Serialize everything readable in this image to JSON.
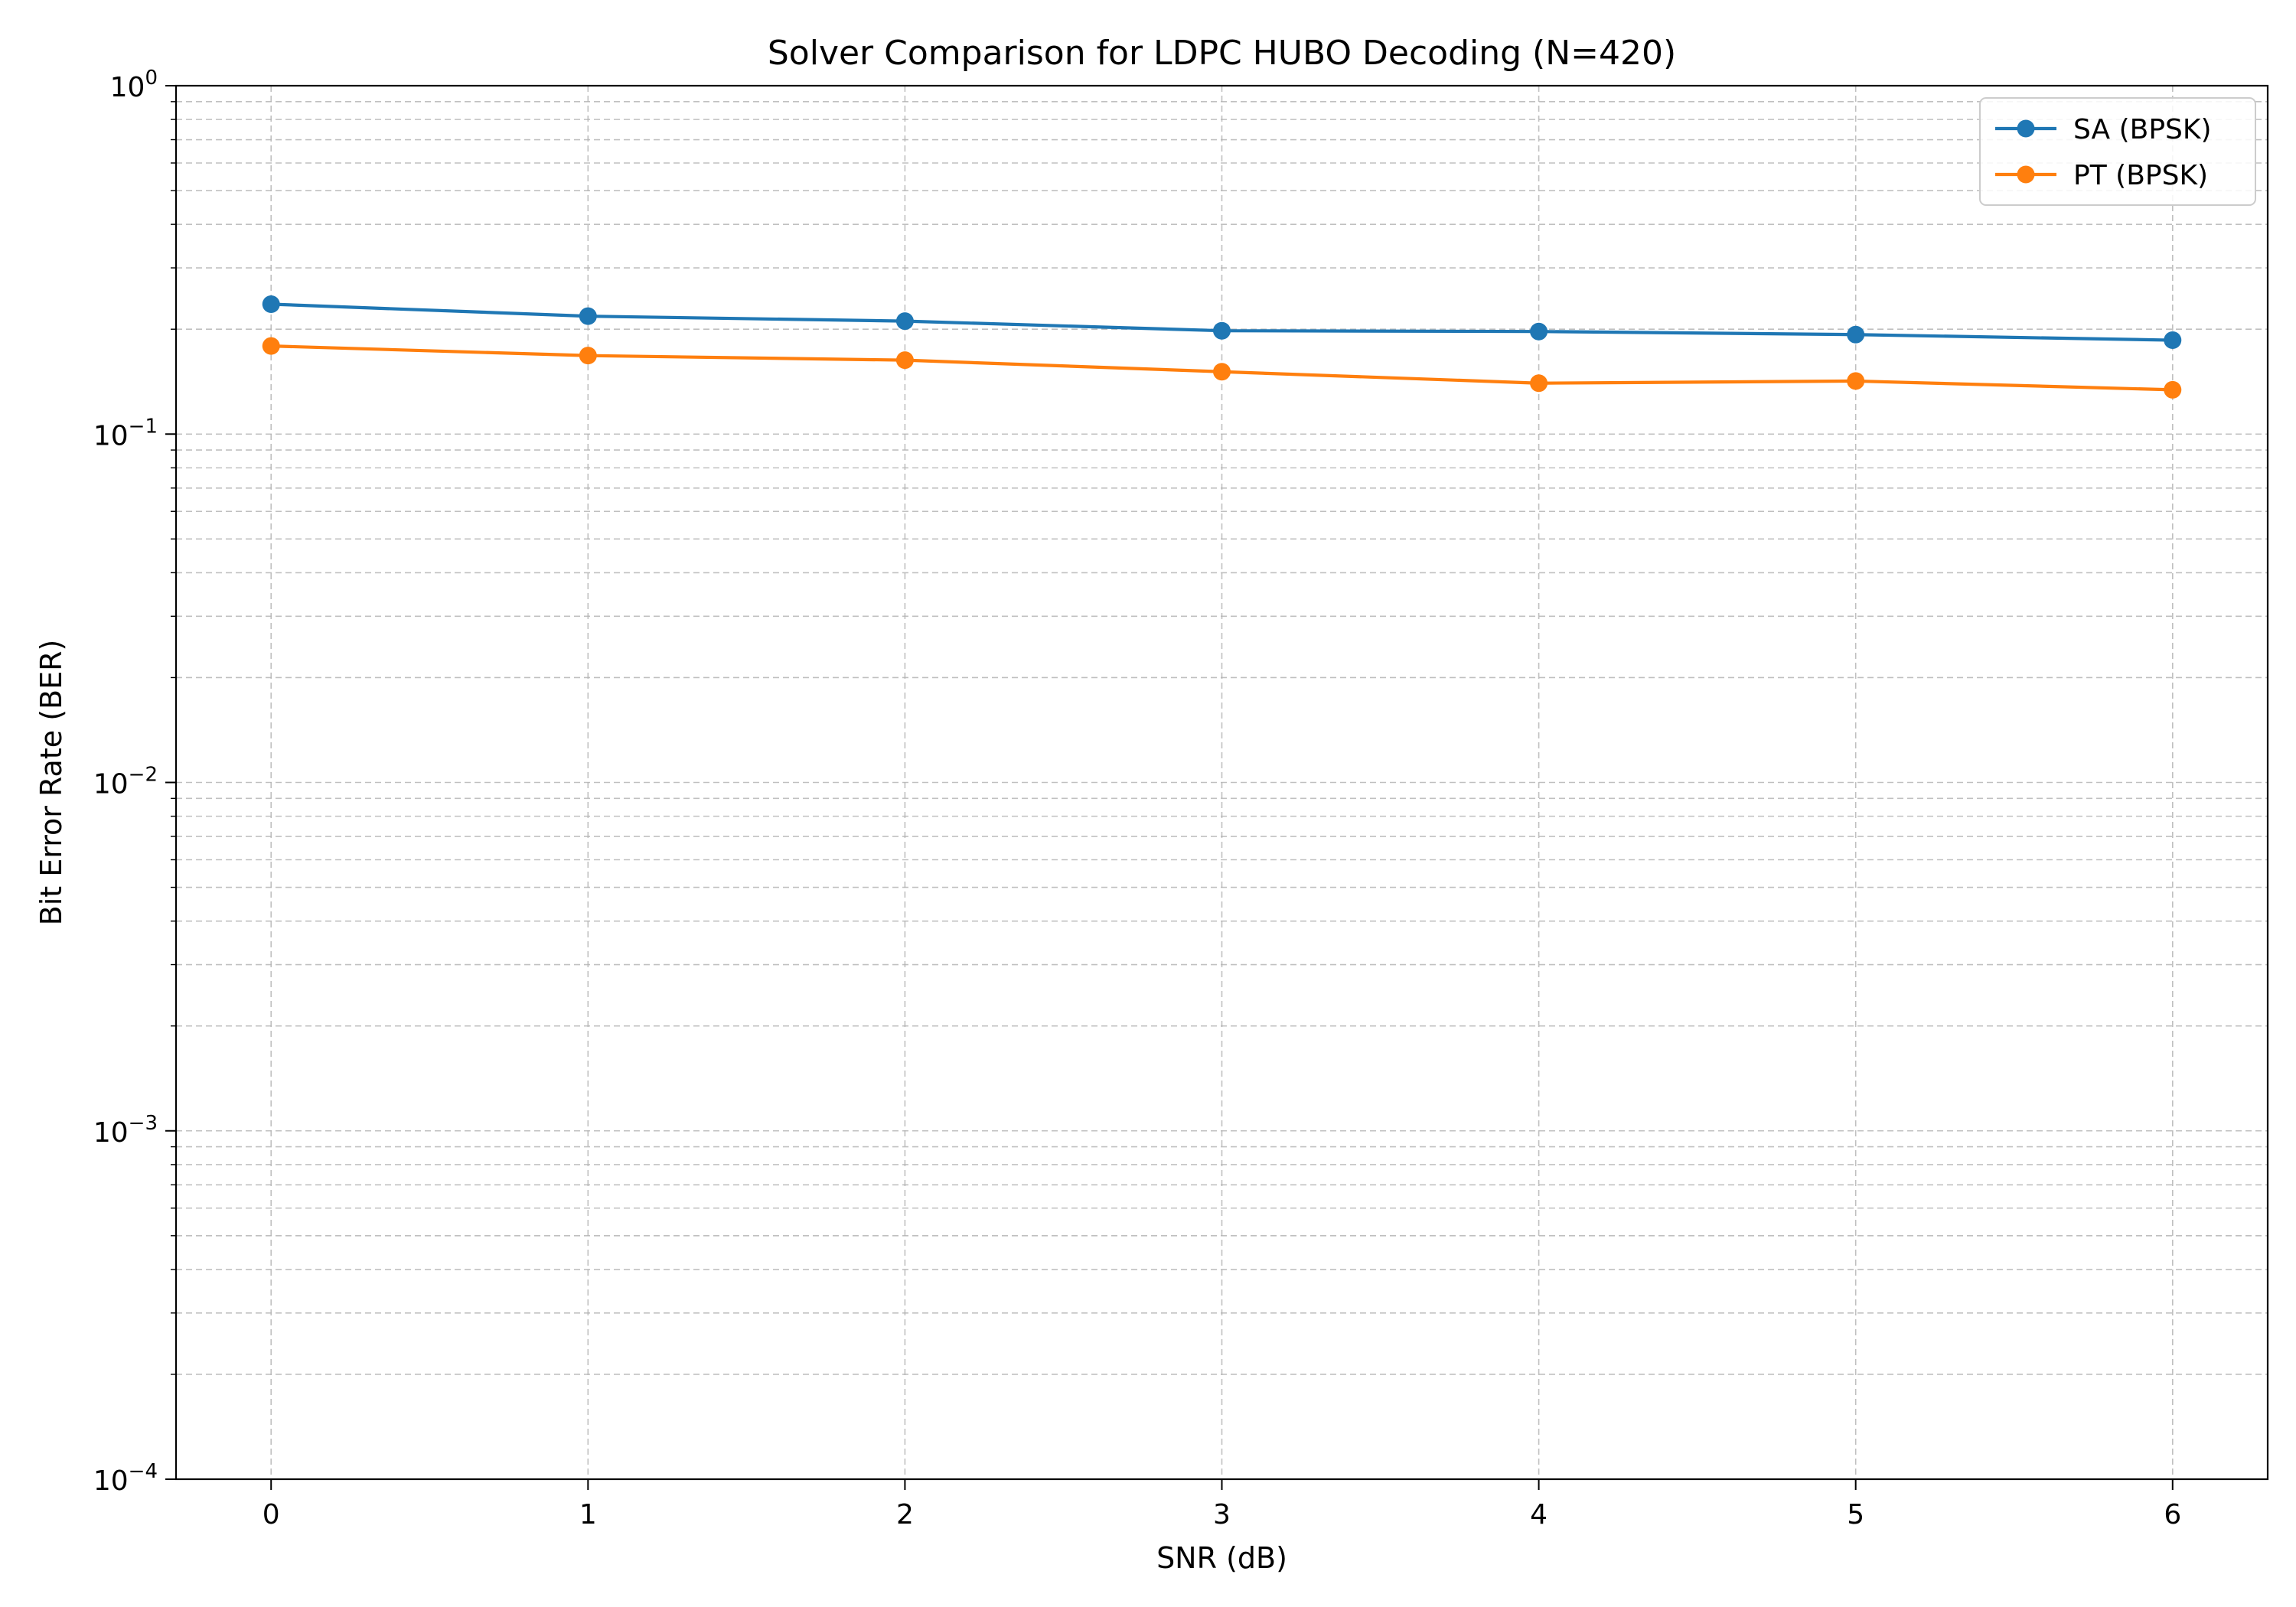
{
  "chart_data": {
    "type": "line",
    "title": "Solver Comparison for LDPC HUBO Decoding (N=420)",
    "xlabel": "SNR (dB)",
    "ylabel": "Bit Error Rate (BER)",
    "x": [
      0,
      1,
      2,
      3,
      4,
      5,
      6
    ],
    "xticks": [
      "0",
      "1",
      "2",
      "3",
      "4",
      "5",
      "6"
    ],
    "xlim": [
      -0.3,
      6.3
    ],
    "ylim": [
      0.0001,
      1
    ],
    "yscale": "log",
    "yticks": [
      {
        "value": 1,
        "base": "10",
        "exp": "0"
      },
      {
        "value": 0.1,
        "base": "10",
        "exp": "−1"
      },
      {
        "value": 0.01,
        "base": "10",
        "exp": "−2"
      },
      {
        "value": 0.001,
        "base": "10",
        "exp": "−3"
      },
      {
        "value": 0.0001,
        "base": "10",
        "exp": "−4"
      }
    ],
    "grid": true,
    "legend_position": "top-right",
    "series": [
      {
        "name": "SA (BPSK)",
        "color": "#1f77b4",
        "values": [
          0.236,
          0.218,
          0.211,
          0.198,
          0.197,
          0.193,
          0.186
        ]
      },
      {
        "name": "PT (BPSK)",
        "color": "#ff7f0e",
        "values": [
          0.179,
          0.168,
          0.163,
          0.151,
          0.14,
          0.142,
          0.134
        ]
      }
    ]
  }
}
